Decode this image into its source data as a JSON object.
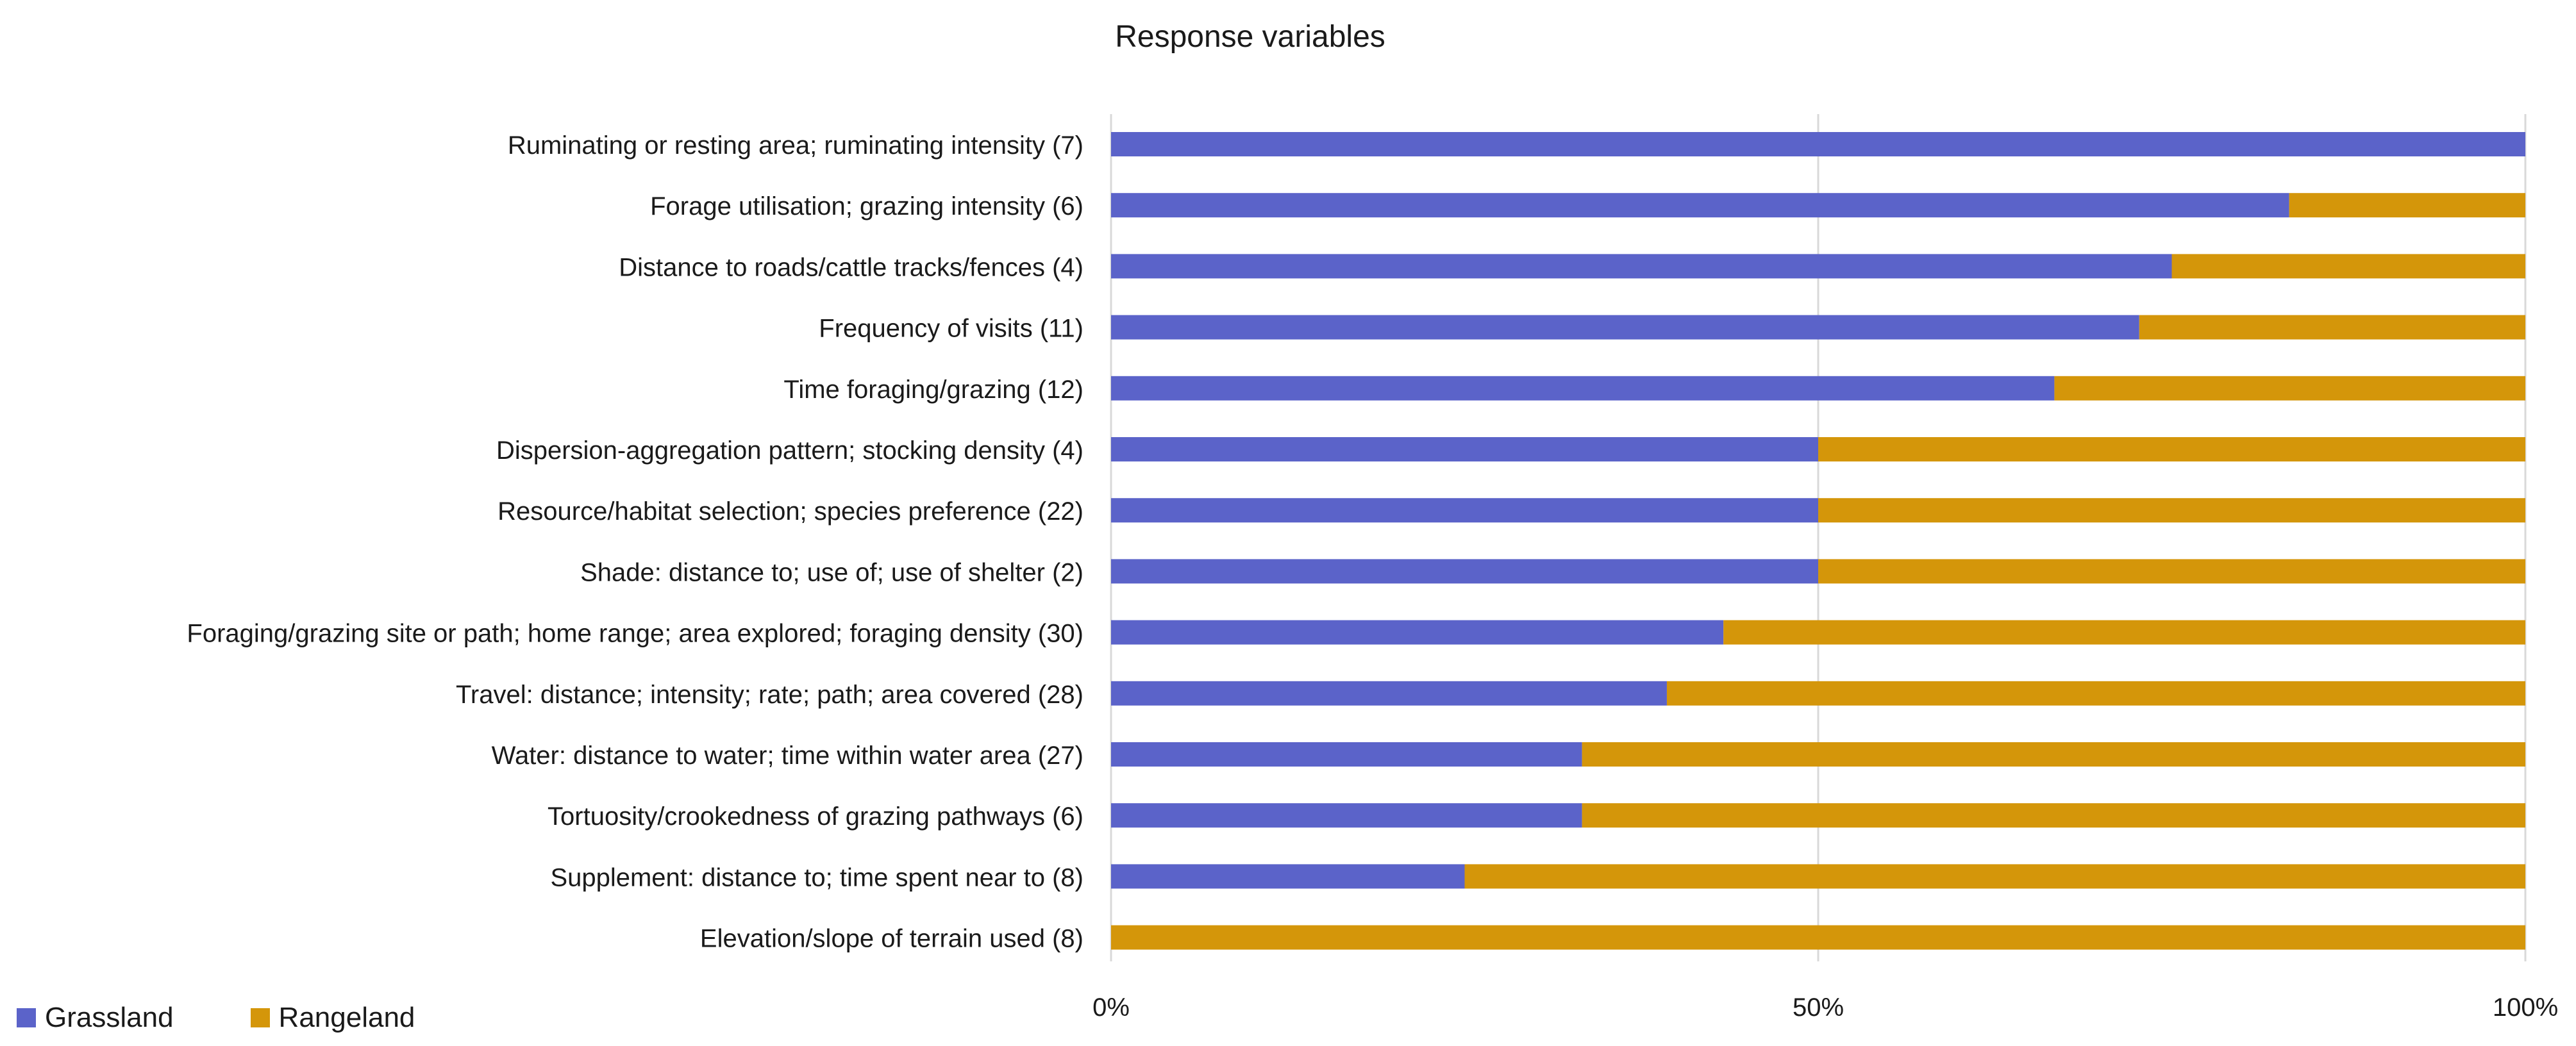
{
  "chart_data": {
    "type": "bar",
    "orientation": "horizontal",
    "stacked": "percent",
    "title": "Response variables",
    "categories": [
      "Ruminating or resting area; ruminating intensity (7)",
      "Forage utilisation; grazing intensity (6)",
      "Distance to roads/cattle tracks/fences (4)",
      "Frequency of visits (11)",
      "Time foraging/grazing (12)",
      "Dispersion-aggregation pattern; stocking density (4)",
      "Resource/habitat selection; species preference (22)",
      "Shade: distance to; use of; use of shelter (2)",
      "Foraging/grazing site or path; home range; area explored; foraging density (30)",
      "Travel: distance; intensity; rate; path; area covered (28)",
      "Water: distance to water; time within water area (27)",
      "Tortuosity/crookedness of grazing pathways (6)",
      "Supplement: distance to; time spent near to (8)",
      "Elevation/slope of terrain used (8)"
    ],
    "series": [
      {
        "name": "Grassland",
        "color": "#5b63c9",
        "values": [
          100,
          83.3,
          75,
          72.7,
          66.7,
          50,
          50,
          50,
          43.3,
          39.3,
          33.3,
          33.3,
          25,
          0
        ]
      },
      {
        "name": "Rangeland",
        "color": "#d4960a",
        "values": [
          0,
          16.7,
          25,
          27.3,
          33.3,
          50,
          50,
          50,
          56.7,
          60.7,
          66.7,
          66.7,
          75,
          100
        ]
      }
    ],
    "xticks": [
      "0%",
      "50%",
      "100%"
    ],
    "xlim": [
      0,
      100
    ],
    "grid": "vertical at 50% and 100%",
    "legend_position": "bottom-left"
  }
}
